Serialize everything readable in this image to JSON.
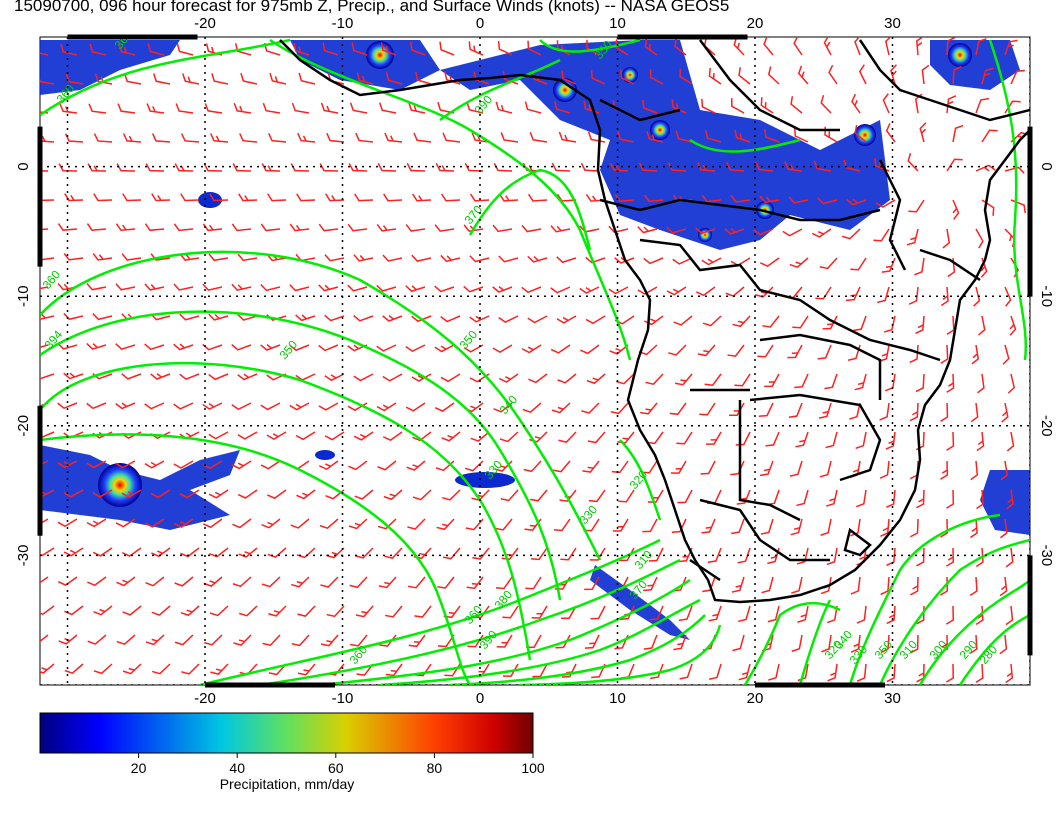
{
  "title": "15090700, 096 hour forecast for 975mb Z, Precip., and Surface Winds (knots) -- NASA GEOS5",
  "map": {
    "lon_range": [
      -32,
      40
    ],
    "lat_range": [
      -40,
      10
    ],
    "top_lon_ticks": [
      "-20",
      "-10",
      "0",
      "10",
      "20",
      "30"
    ],
    "bottom_lon_ticks": [
      "-20",
      "-10",
      "0",
      "10",
      "20",
      "30"
    ],
    "left_lat_ticks": [
      "0",
      "-10",
      "-20",
      "-30"
    ],
    "right_lat_ticks": [
      "0",
      "-10",
      "-20",
      "-30"
    ],
    "contour_labels": [
      "360",
      "350",
      "360",
      "390",
      "370",
      "360",
      "394",
      "350",
      "350",
      "340",
      "330",
      "320",
      "330",
      "310",
      "380",
      "370",
      "360",
      "390",
      "360",
      "350",
      "340",
      "330",
      "320",
      "310",
      "300",
      "290",
      "280"
    ],
    "colors": {
      "contour": "#00ee00",
      "wind_barb": "#ff2020",
      "coastline": "#000000",
      "grid": "#000000"
    }
  },
  "colorbar": {
    "ticks": [
      "20",
      "40",
      "60",
      "80",
      "100"
    ],
    "label": "Precipitation, mm/day",
    "range": [
      0,
      100
    ],
    "colormap": [
      "#00007f",
      "#0000ff",
      "#00bfff",
      "#00e0a0",
      "#b0e000",
      "#e0c000",
      "#ff6000",
      "#e00000",
      "#7f0000"
    ]
  }
}
